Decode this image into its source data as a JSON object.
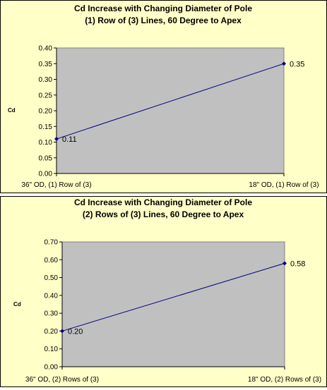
{
  "chart_data": [
    {
      "type": "line",
      "title": "Cd Increase with Changing Diameter of Pole",
      "subtitle": "(1) Row of (3) Lines, 60 Degree to Apex",
      "ylabel": "Cd",
      "categories": [
        "36\" OD, (1) Row of (3)",
        "18\" OD, (1) Row of (3)"
      ],
      "series": [
        {
          "values": [
            0.11,
            0.35
          ]
        }
      ],
      "data_labels": [
        "0.11",
        "0.35"
      ],
      "ylim": [
        0,
        0.4
      ],
      "yticks": [
        "0.00",
        "0.05",
        "0.10",
        "0.15",
        "0.20",
        "0.25",
        "0.30",
        "0.35",
        "0.40"
      ],
      "grid": false,
      "plot_bg": "#c0c0c0",
      "line_color": "#000080"
    },
    {
      "type": "line",
      "title": "Cd Increase with Changing Diameter of Pole",
      "subtitle": "(2) Rows of (3) Lines, 60 Degree to Apex",
      "ylabel": "Cd",
      "categories": [
        "36\" OD, (2) Rows of (3)",
        "18\" OD, (2) Rows of (3)"
      ],
      "series": [
        {
          "values": [
            0.2,
            0.58
          ]
        }
      ],
      "data_labels": [
        "0.20",
        "0.58"
      ],
      "ylim": [
        0,
        0.7
      ],
      "yticks": [
        "0.00",
        "0.10",
        "0.20",
        "0.30",
        "0.40",
        "0.50",
        "0.60",
        "0.70"
      ],
      "grid": false,
      "plot_bg": "#c0c0c0",
      "line_color": "#000080"
    }
  ]
}
